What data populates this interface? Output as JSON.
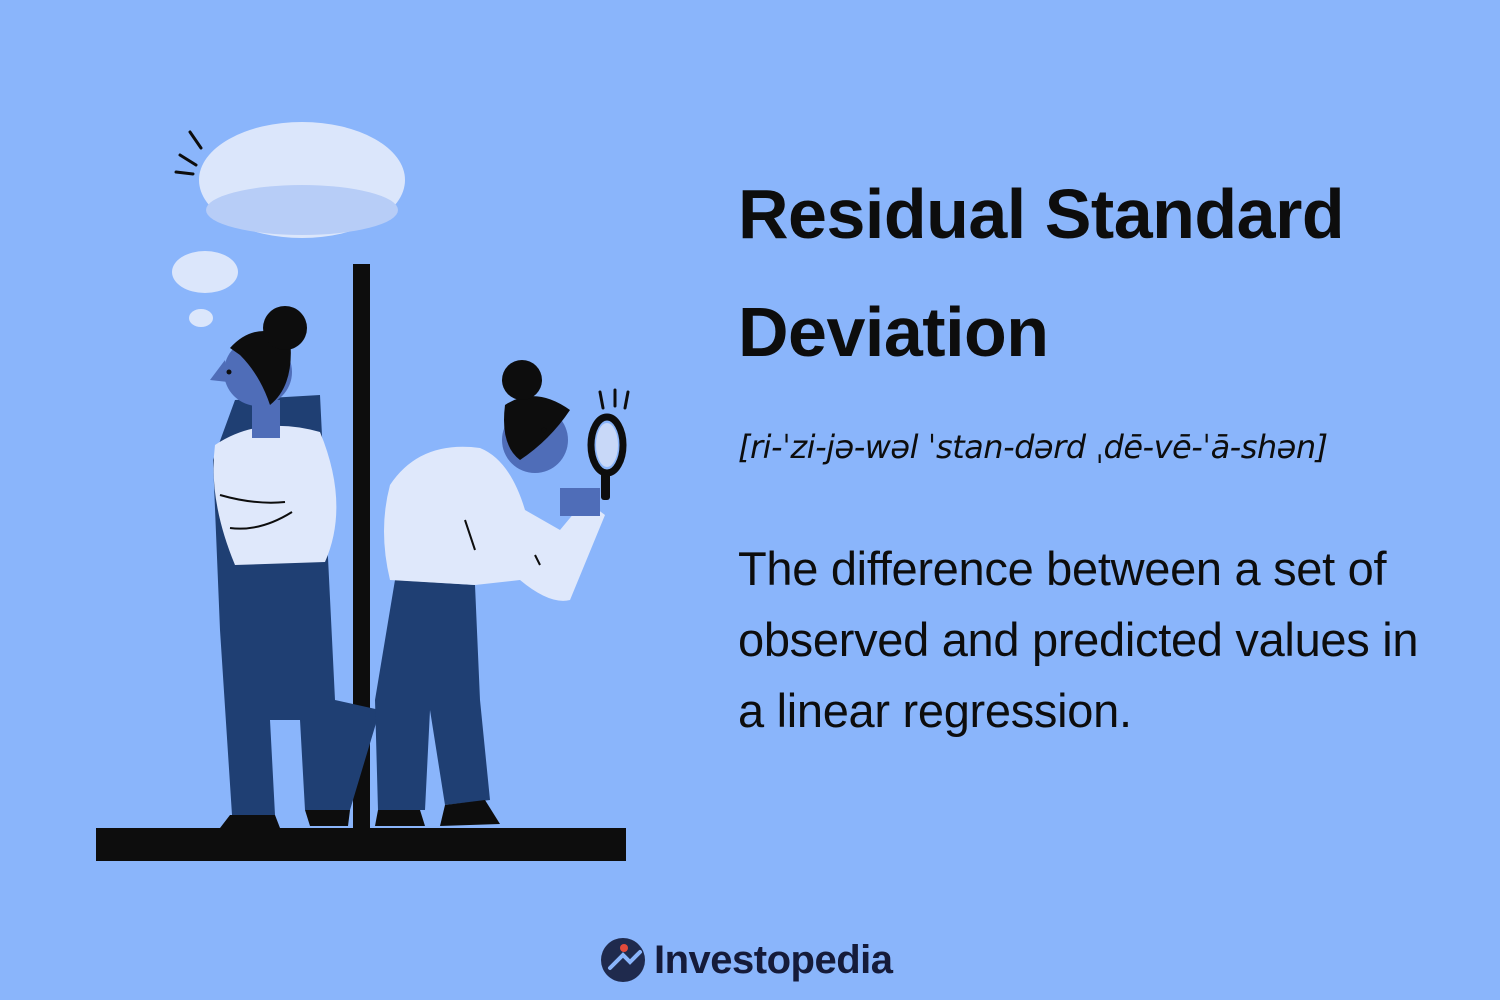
{
  "title": "Residual Standard Deviation",
  "pronunciation": "[ri-ˈzi-jə-wəl ˈstan-dərd ˌdē-vē-ˈā-shən]",
  "definition": "The difference between a set of observed and predicted values in a linear regression.",
  "brand": {
    "name": "Investopedia",
    "logo_icon": "investopedia-logo-icon"
  },
  "colors": {
    "background": "#8ab5fb",
    "skin": "#4f6db8",
    "pants": "#1f3f73",
    "shirt": "#dfe8fb",
    "hair": "#0d0d0d"
  }
}
